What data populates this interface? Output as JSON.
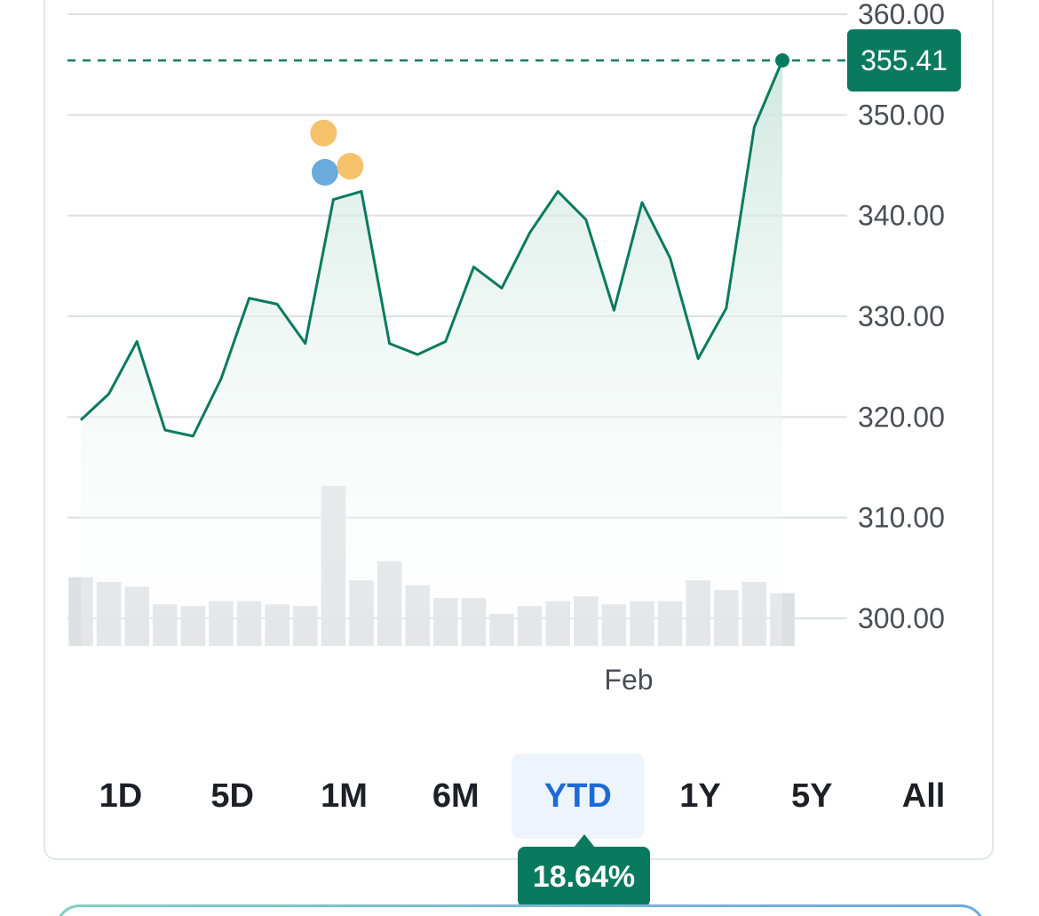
{
  "chart_data": {
    "type": "line",
    "ylim": [
      296,
      360
    ],
    "y_ticks": [
      "360.00",
      "350.00",
      "340.00",
      "330.00",
      "320.00",
      "310.00",
      "300.00"
    ],
    "y_tick_values": [
      360,
      350,
      340,
      330,
      320,
      310,
      300
    ],
    "x_ticks": [
      {
        "label": "Feb",
        "index": 20
      }
    ],
    "series": [
      {
        "values": [
          319.7,
          322.3,
          327.5,
          318.7,
          318.1,
          323.8,
          331.8,
          331.2,
          327.3,
          341.6,
          342.4,
          327.3,
          326.2,
          327.5,
          334.9,
          332.8,
          338.3,
          342.4,
          339.6,
          330.6,
          341.3,
          335.8,
          325.8,
          330.8,
          348.8,
          355.41
        ]
      }
    ],
    "volume": [
      0.43,
      0.4,
      0.37,
      0.26,
      0.25,
      0.28,
      0.28,
      0.26,
      0.25,
      1.0,
      0.41,
      0.53,
      0.38,
      0.3,
      0.3,
      0.2,
      0.25,
      0.28,
      0.31,
      0.26,
      0.28,
      0.28,
      0.41,
      0.35,
      0.4,
      0.33
    ],
    "current_price": 355.41,
    "current_price_label": "355.41",
    "event_markers": [
      {
        "index": 9,
        "offset": -0.35,
        "value": 348.2,
        "color": "#f5c26b"
      },
      {
        "index": 9,
        "offset": -0.3,
        "value": 344.3,
        "color": "#6aaadc"
      },
      {
        "index": 9,
        "offset": 0.6,
        "value": 344.9,
        "color": "#f5c26b"
      }
    ],
    "colors": {
      "line": "#0a7a5e",
      "fill": "#d6ebe5",
      "volume": "#dde0e3",
      "grid": "#dcdfe2",
      "badge": "#0a7a5e"
    }
  },
  "ranges": [
    {
      "label": "1D",
      "active": false
    },
    {
      "label": "5D",
      "active": false
    },
    {
      "label": "1M",
      "active": false
    },
    {
      "label": "6M",
      "active": false
    },
    {
      "label": "YTD",
      "active": true
    },
    {
      "label": "1Y",
      "active": false
    },
    {
      "label": "5Y",
      "active": false
    },
    {
      "label": "All",
      "active": false
    }
  ],
  "change_badge": "18.64%"
}
